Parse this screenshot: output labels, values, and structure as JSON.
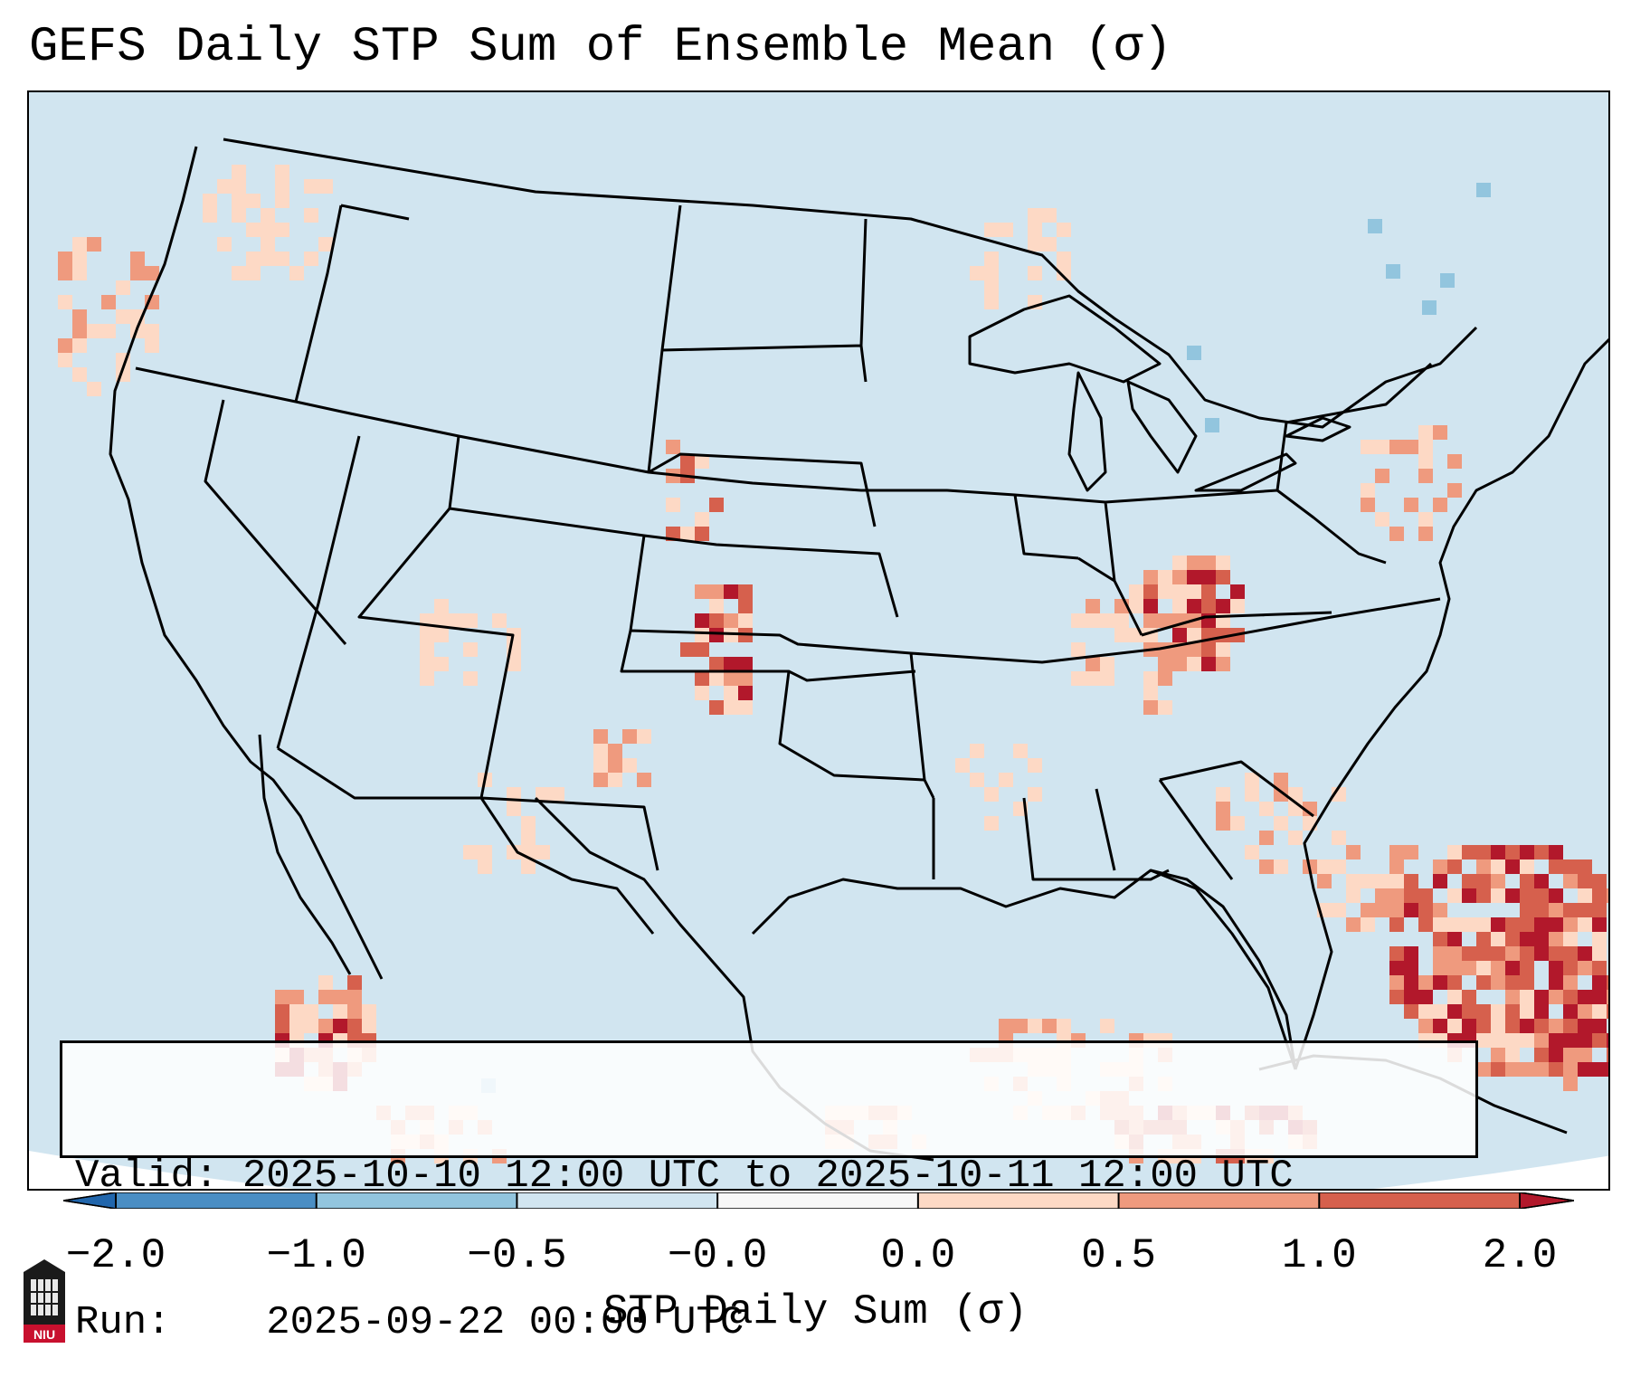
{
  "title": "GEFS Daily STP Sum of Ensemble Mean (σ)",
  "info": {
    "valid_label": "Valid:",
    "valid_value": "2025-10-10 12:00 UTC to 2025-10-11 12:00 UTC",
    "run_label": "Run:",
    "run_value": "2025-09-22 00:00 UTC"
  },
  "colorbar": {
    "label": "STP Daily Sum (σ)",
    "ticks": [
      "−2.0",
      "−1.0",
      "−0.5",
      "−0.0",
      "0.0",
      "0.5",
      "1.0",
      "2.0"
    ],
    "colors": [
      "#4a8ec4",
      "#92c5de",
      "#d1e5f0",
      "#f7f7f7",
      "#fdd9c5",
      "#ef9a7e",
      "#d6604d",
      "#b2182b"
    ],
    "extend_low_color": "#2166ac",
    "extend_high_color": "#b2182b"
  },
  "map": {
    "background_color": "#d1e5f0",
    "cell_colors": {
      "light": "#fdd9c5",
      "medium": "#ef9a7e",
      "strong": "#d6604d",
      "max": "#b2182b",
      "neg": "#92c5de"
    }
  },
  "logo": {
    "text": "NIU",
    "icon": "university-building-icon"
  }
}
